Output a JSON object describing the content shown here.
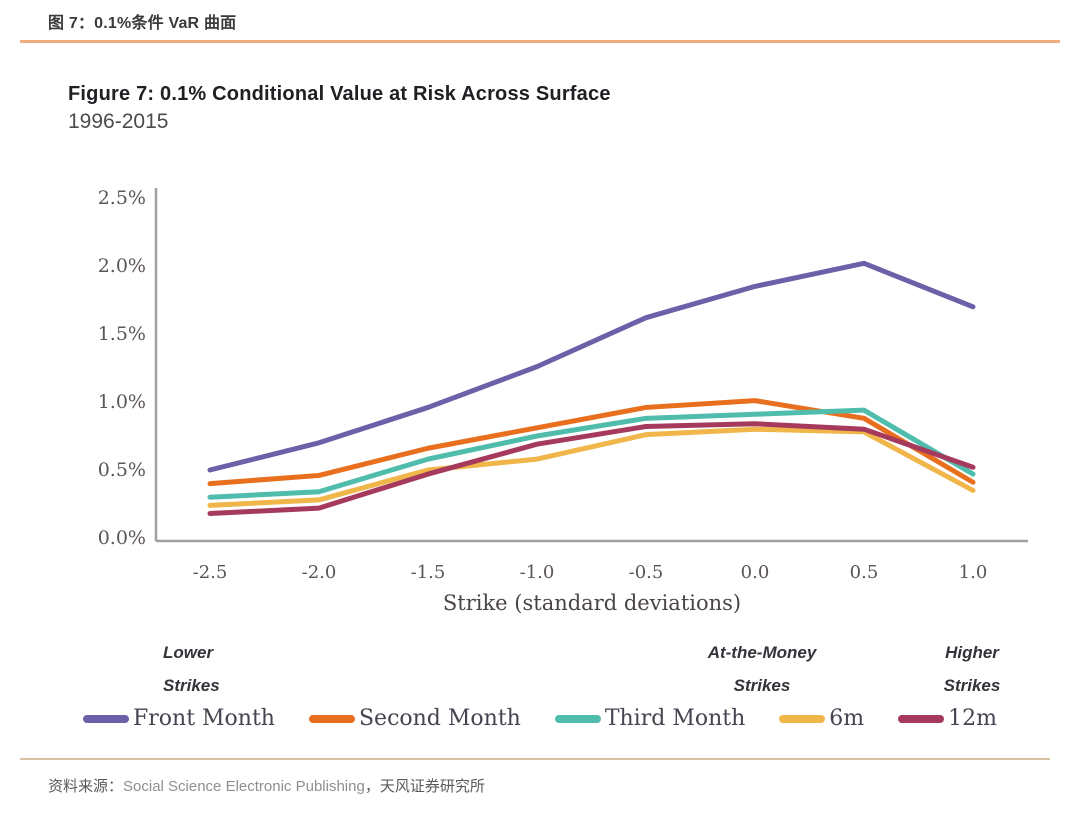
{
  "header": {
    "title": "图 7：0.1%条件 VaR 曲面",
    "rule_color": "#EDAD80"
  },
  "figure": {
    "title": "Figure 7: 0.1% Conditional Value at Risk Across Surface",
    "subtitle": "1996-2015"
  },
  "chart_data": {
    "type": "line",
    "title": "Figure 7: 0.1% Conditional Value at Risk Across Surface",
    "subtitle": "1996-2015",
    "xlabel": "Strike (standard deviations)",
    "ylabel": "",
    "x": [
      -2.5,
      -2.0,
      -1.5,
      -1.0,
      -0.5,
      0.0,
      0.5,
      1.0
    ],
    "xtick_labels": [
      "-2.5",
      "-2.0",
      "-1.5",
      "-1.0",
      "-0.5",
      "0.0",
      "0.5",
      "1.0"
    ],
    "yticks": [
      {
        "value": 0.0,
        "label": "0.0%"
      },
      {
        "value": 0.5,
        "label": "0.5%"
      },
      {
        "value": 1.0,
        "label": "1.0%"
      },
      {
        "value": 1.5,
        "label": "1.5%"
      },
      {
        "value": 2.0,
        "label": "2.0%"
      },
      {
        "value": 2.5,
        "label": "2.5%"
      }
    ],
    "ylim": [
      0,
      2.5
    ],
    "grid": false,
    "legend_position": "bottom",
    "series": [
      {
        "name": "Front Month",
        "color": "#6C60A8",
        "values": [
          0.5,
          0.7,
          0.96,
          1.26,
          1.62,
          1.85,
          2.02,
          1.7
        ]
      },
      {
        "name": "Second Month",
        "color": "#E76F1E",
        "values": [
          0.4,
          0.46,
          0.66,
          0.81,
          0.96,
          1.01,
          0.88,
          0.41
        ]
      },
      {
        "name": "Third Month",
        "color": "#4FBCAC",
        "values": [
          0.3,
          0.34,
          0.58,
          0.75,
          0.88,
          0.91,
          0.94,
          0.47
        ]
      },
      {
        "name": "6m",
        "color": "#F0B64A",
        "values": [
          0.24,
          0.28,
          0.5,
          0.58,
          0.76,
          0.8,
          0.78,
          0.35
        ]
      },
      {
        "name": "12m",
        "color": "#A53A5C",
        "values": [
          0.18,
          0.22,
          0.47,
          0.69,
          0.82,
          0.84,
          0.8,
          0.52
        ]
      }
    ],
    "annotations": [
      {
        "line1": "Lower",
        "line2": "Strikes"
      },
      {
        "line1": "At-the-Money",
        "line2": "Strikes"
      },
      {
        "line1": "Higher",
        "line2": "Strikes"
      }
    ]
  },
  "footer": {
    "source_label": "资料来源：",
    "source_en": "Social Science Electronic Publishing",
    "source_cn": "，天风证券研究所"
  }
}
